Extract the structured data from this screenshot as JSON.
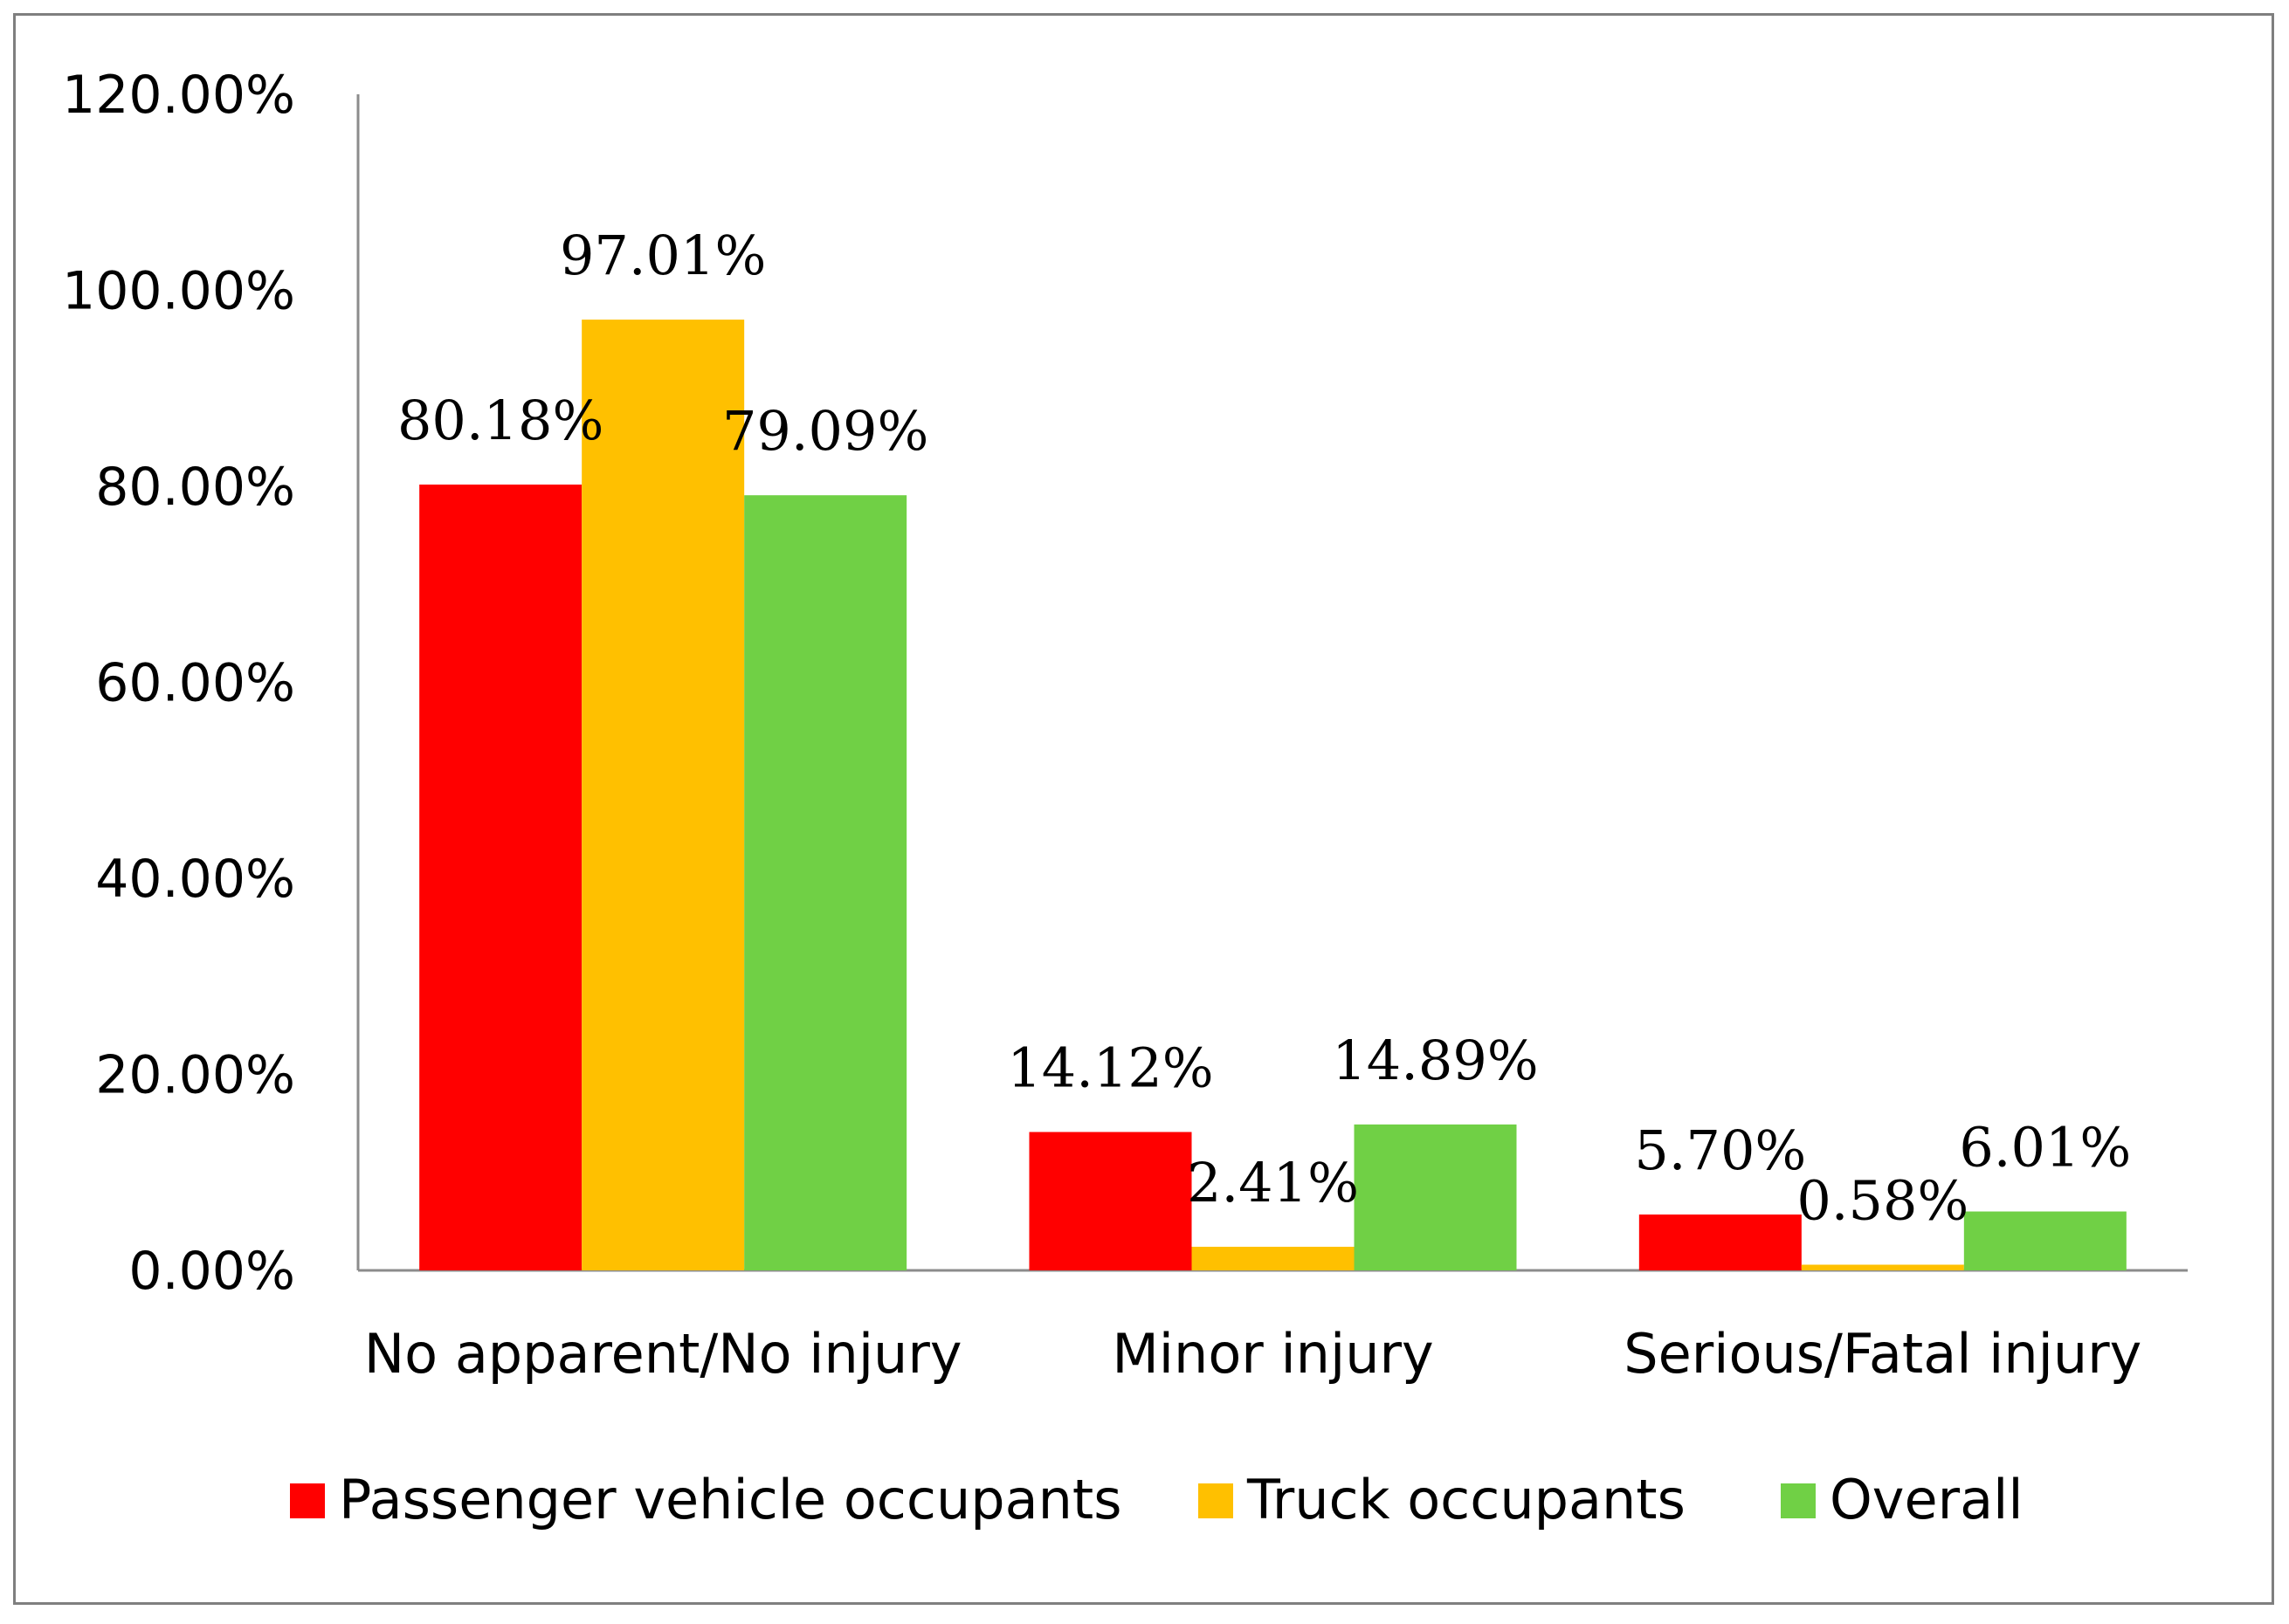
{
  "chart_data": {
    "type": "bar",
    "title": "",
    "xlabel": "",
    "ylabel": "",
    "ylim": [
      0,
      1.2
    ],
    "yticks": [
      0,
      0.2,
      0.4,
      0.6,
      0.8,
      1.0,
      1.2
    ],
    "ytick_labels": [
      "0.00%",
      "20.00%",
      "40.00%",
      "60.00%",
      "80.00%",
      "100.00%",
      "120.00%"
    ],
    "grid": false,
    "legend_position": "bottom",
    "categories": [
      "No apparent/No injury",
      "Minor injury",
      "Serious/Fatal injury"
    ],
    "series": [
      {
        "name": "Passenger vehicle occupants",
        "color": "#ff0000",
        "values": [
          0.8018,
          0.1412,
          0.057
        ],
        "labels": [
          "80.18%",
          "14.12%",
          "5.70%"
        ]
      },
      {
        "name": "Truck occupants",
        "color": "#ffc000",
        "values": [
          0.9701,
          0.0241,
          0.0058
        ],
        "labels": [
          "97.01%",
          "2.41%",
          "0.58%"
        ]
      },
      {
        "name": "Overall",
        "color": "#70d045",
        "values": [
          0.7909,
          0.1489,
          0.0601
        ],
        "labels": [
          "79.09%",
          "14.89%",
          "6.01%"
        ]
      }
    ]
  }
}
